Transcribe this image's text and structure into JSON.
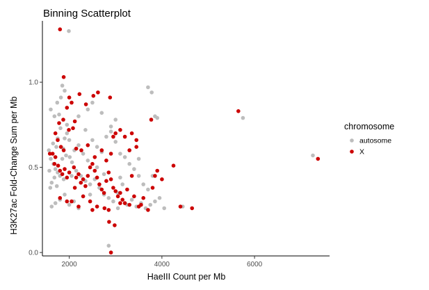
{
  "chart_data": {
    "type": "scatter",
    "title": "Binning Scatterplot",
    "xlabel": "HaeIII Count per Mb",
    "ylabel": "H3K27ac Fold-Change Sum per Mb",
    "xlim": [
      1420,
      7620
    ],
    "ylim": [
      -0.02,
      1.36
    ],
    "xticks": [
      2000,
      4000,
      6000
    ],
    "xtick_labels": [
      "2000",
      "4000",
      "6000"
    ],
    "yticks": [
      0.0,
      0.5,
      1.0
    ],
    "ytick_labels": [
      "0.0",
      "0.5",
      "1.0"
    ],
    "grid": false,
    "legend": {
      "title": "chromosome",
      "placement": "right",
      "entries": [
        "autosome",
        "X"
      ]
    },
    "colors": {
      "autosome": "#bdbdbd",
      "X": "#cc0000"
    },
    "series": [
      {
        "name": "autosome",
        "points": [
          [
            1990,
            1.3
          ],
          [
            1600,
            0.84
          ],
          [
            1680,
            0.8
          ],
          [
            1820,
            0.91
          ],
          [
            1850,
            0.98
          ],
          [
            1900,
            0.95
          ],
          [
            1740,
            0.88
          ],
          [
            1780,
            0.81
          ],
          [
            1650,
            0.64
          ],
          [
            1720,
            0.62
          ],
          [
            1810,
            0.73
          ],
          [
            1900,
            0.67
          ],
          [
            1950,
            0.7
          ],
          [
            1870,
            0.61
          ],
          [
            1600,
            0.55
          ],
          [
            1660,
            0.52
          ],
          [
            1700,
            0.49
          ],
          [
            1750,
            0.47
          ],
          [
            1800,
            0.45
          ],
          [
            1620,
            0.41
          ],
          [
            1680,
            0.44
          ],
          [
            1730,
            0.39
          ],
          [
            1880,
            0.43
          ],
          [
            1930,
            0.57
          ],
          [
            2010,
            0.56
          ],
          [
            2060,
            0.53
          ],
          [
            2110,
            0.6
          ],
          [
            2200,
            0.63
          ],
          [
            2300,
            0.58
          ],
          [
            2400,
            0.54
          ],
          [
            2500,
            0.66
          ],
          [
            2600,
            0.62
          ],
          [
            2700,
            0.59
          ],
          [
            2800,
            0.68
          ],
          [
            2900,
            0.71
          ],
          [
            3000,
            0.65
          ],
          [
            3100,
            0.58
          ],
          [
            3200,
            0.56
          ],
          [
            3300,
            0.52
          ],
          [
            3400,
            0.49
          ],
          [
            3500,
            0.45
          ],
          [
            3600,
            0.4
          ],
          [
            3700,
            0.37
          ],
          [
            3800,
            0.45
          ],
          [
            2150,
            0.48
          ],
          [
            2250,
            0.45
          ],
          [
            2350,
            0.42
          ],
          [
            2450,
            0.4
          ],
          [
            2550,
            0.43
          ],
          [
            2650,
            0.38
          ],
          [
            2750,
            0.34
          ],
          [
            2850,
            0.32
          ],
          [
            2950,
            0.3
          ],
          [
            3050,
            0.35
          ],
          [
            3150,
            0.4
          ],
          [
            3250,
            0.28
          ],
          [
            3350,
            0.31
          ],
          [
            3450,
            0.27
          ],
          [
            3550,
            0.29
          ],
          [
            3650,
            0.26
          ],
          [
            3750,
            0.28
          ],
          [
            3850,
            0.3
          ],
          [
            3950,
            0.32
          ],
          [
            4050,
            0.26
          ],
          [
            4450,
            0.27
          ],
          [
            1700,
            0.29
          ],
          [
            1800,
            0.31
          ],
          [
            1900,
            0.34
          ],
          [
            2000,
            0.28
          ],
          [
            2100,
            0.3
          ],
          [
            2200,
            0.26
          ],
          [
            2300,
            0.33
          ],
          [
            3700,
            0.97
          ],
          [
            3780,
            0.94
          ],
          [
            3850,
            0.8
          ],
          [
            3900,
            0.79
          ],
          [
            3000,
            0.78
          ],
          [
            2900,
            0.74
          ],
          [
            2700,
            0.82
          ],
          [
            2500,
            0.88
          ],
          [
            2400,
            0.84
          ],
          [
            2200,
            0.8
          ],
          [
            1950,
            0.75
          ],
          [
            2850,
            0.04
          ],
          [
            5750,
            0.79
          ],
          [
            7260,
            0.57
          ],
          [
            1560,
            0.6
          ],
          [
            1570,
            0.48
          ],
          [
            1590,
            0.38
          ],
          [
            1620,
            0.27
          ],
          [
            2050,
            0.45
          ],
          [
            2600,
            0.5
          ],
          [
            3100,
            0.44
          ],
          [
            3300,
            0.6
          ],
          [
            3500,
            0.55
          ],
          [
            2350,
            0.72
          ],
          [
            2000,
            0.66
          ],
          [
            2450,
            0.34
          ],
          [
            2750,
            0.46
          ],
          [
            3050,
            0.26
          ],
          [
            1850,
            0.55
          ],
          [
            1750,
            0.67
          ]
        ]
      },
      {
        "name": "X",
        "points": [
          [
            1800,
            1.31
          ],
          [
            1880,
            1.03
          ],
          [
            1950,
            0.85
          ],
          [
            2000,
            0.91
          ],
          [
            2050,
            0.88
          ],
          [
            2120,
            0.77
          ],
          [
            2220,
            0.93
          ],
          [
            2360,
            0.87
          ],
          [
            2520,
            0.92
          ],
          [
            2620,
            0.94
          ],
          [
            2880,
            0.91
          ],
          [
            2080,
            0.73
          ],
          [
            1990,
            0.72
          ],
          [
            1870,
            0.78
          ],
          [
            1780,
            0.76
          ],
          [
            1700,
            0.7
          ],
          [
            1750,
            0.66
          ],
          [
            1820,
            0.62
          ],
          [
            1880,
            0.6
          ],
          [
            1640,
            0.58
          ],
          [
            1700,
            0.56
          ],
          [
            1760,
            0.51
          ],
          [
            1800,
            0.48
          ],
          [
            1850,
            0.46
          ],
          [
            1900,
            0.49
          ],
          [
            1950,
            0.44
          ],
          [
            2000,
            0.47
          ],
          [
            2100,
            0.5
          ],
          [
            2150,
            0.44
          ],
          [
            2200,
            0.46
          ],
          [
            2250,
            0.41
          ],
          [
            2300,
            0.43
          ],
          [
            2350,
            0.39
          ],
          [
            2400,
            0.45
          ],
          [
            2450,
            0.5
          ],
          [
            2500,
            0.52
          ],
          [
            2550,
            0.48
          ],
          [
            2600,
            0.44
          ],
          [
            2650,
            0.4
          ],
          [
            2700,
            0.37
          ],
          [
            2750,
            0.35
          ],
          [
            2800,
            0.42
          ],
          [
            2850,
            0.47
          ],
          [
            2900,
            0.43
          ],
          [
            2950,
            0.38
          ],
          [
            3000,
            0.36
          ],
          [
            3050,
            0.33
          ],
          [
            3100,
            0.35
          ],
          [
            3150,
            0.31
          ],
          [
            3200,
            0.29
          ],
          [
            3250,
            0.37
          ],
          [
            3300,
            0.6
          ],
          [
            3350,
            0.45
          ],
          [
            3400,
            0.33
          ],
          [
            3450,
            0.62
          ],
          [
            3500,
            0.27
          ],
          [
            3550,
            0.28
          ],
          [
            3600,
            0.32
          ],
          [
            3700,
            0.25
          ],
          [
            3800,
            0.38
          ],
          [
            3850,
            0.45
          ],
          [
            3900,
            0.48
          ],
          [
            4000,
            0.43
          ],
          [
            4250,
            0.51
          ],
          [
            4400,
            0.27
          ],
          [
            4650,
            0.26
          ],
          [
            5650,
            0.83
          ],
          [
            7370,
            0.55
          ],
          [
            3770,
            0.78
          ],
          [
            3000,
            0.7
          ],
          [
            2950,
            0.68
          ],
          [
            3100,
            0.72
          ],
          [
            3200,
            0.68
          ],
          [
            3350,
            0.7
          ],
          [
            3450,
            0.66
          ],
          [
            2700,
            0.6
          ],
          [
            2800,
            0.54
          ],
          [
            2900,
            0.58
          ],
          [
            2150,
            0.61
          ],
          [
            2260,
            0.6
          ],
          [
            2400,
            0.63
          ],
          [
            2550,
            0.56
          ],
          [
            2300,
            0.33
          ],
          [
            2200,
            0.27
          ],
          [
            2450,
            0.3
          ],
          [
            2600,
            0.27
          ],
          [
            2760,
            0.26
          ],
          [
            2860,
            0.18
          ],
          [
            2980,
            0.16
          ],
          [
            3300,
            0.28
          ],
          [
            3100,
            0.29
          ],
          [
            2050,
            0.3
          ],
          [
            1950,
            0.3
          ],
          [
            1800,
            0.32
          ],
          [
            2500,
            0.25
          ],
          [
            2900,
            0.0
          ],
          [
            1580,
            0.58
          ],
          [
            1680,
            0.52
          ],
          [
            2120,
            0.38
          ],
          [
            2850,
            0.25
          ]
        ]
      }
    ]
  }
}
